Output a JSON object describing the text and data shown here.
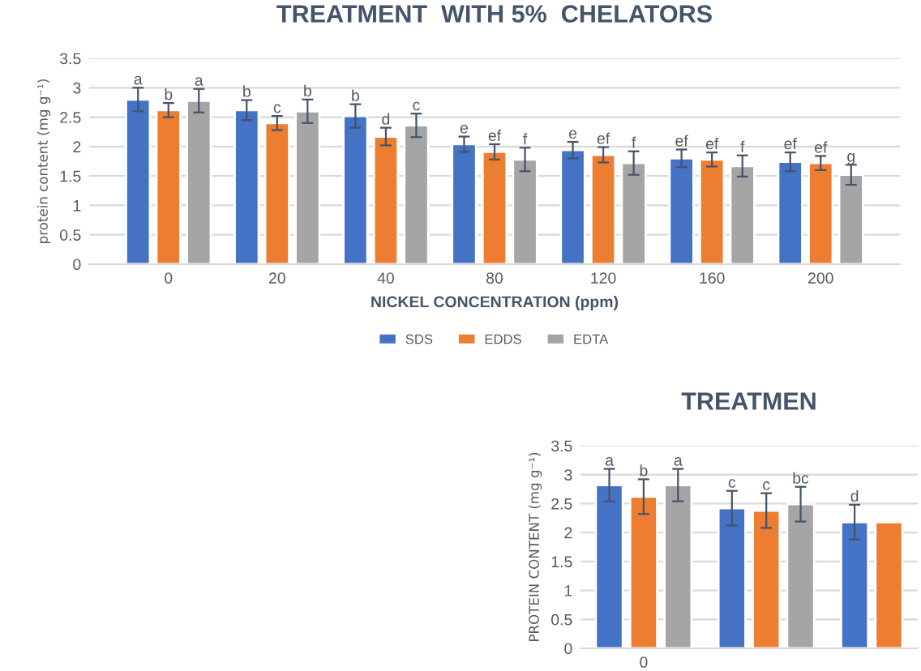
{
  "chart_data": [
    {
      "type": "bar",
      "title": "TREATMENT  WITH 5%  CHELATORS",
      "xlabel": "NICKEL CONCENTRATION (ppm)",
      "ylabel": "protein content (mg g⁻¹)",
      "categories": [
        "0",
        "20",
        "40",
        "80",
        "120",
        "160",
        "200"
      ],
      "ylim": [
        0,
        3.5
      ],
      "yticks": [
        0,
        0.5,
        1,
        1.5,
        2,
        2.5,
        3,
        3.5
      ],
      "grid": "y",
      "legend": "bottom",
      "series": [
        {
          "name": "SDS",
          "color": "#4472c4",
          "values": [
            2.8,
            2.62,
            2.52,
            2.04,
            1.94,
            1.8,
            1.74
          ],
          "errors": [
            0.2,
            0.17,
            0.2,
            0.13,
            0.14,
            0.15,
            0.16
          ],
          "value_labels": [
            "a",
            "b",
            "b",
            "e",
            "e",
            "ef",
            "ef"
          ]
        },
        {
          "name": "EDDS",
          "color": "#ed7d31",
          "values": [
            2.62,
            2.4,
            2.17,
            1.91,
            1.86,
            1.78,
            1.72
          ],
          "errors": [
            0.12,
            0.12,
            0.15,
            0.13,
            0.13,
            0.12,
            0.12
          ],
          "value_labels": [
            "b",
            "c",
            "d",
            "ef",
            "ef",
            "ef",
            "ef"
          ]
        },
        {
          "name": "EDTA",
          "color": "#a5a5a5",
          "values": [
            2.78,
            2.6,
            2.36,
            1.78,
            1.72,
            1.67,
            1.52
          ],
          "errors": [
            0.2,
            0.2,
            0.2,
            0.2,
            0.2,
            0.18,
            0.17
          ],
          "value_labels": [
            "a",
            "b",
            "c",
            "f",
            "f",
            "f",
            "g"
          ]
        }
      ]
    },
    {
      "type": "bar",
      "title": "TREATMEN",
      "ylabel": "PROTEIN CONTENT (mg g⁻¹)",
      "categories": [
        "0",
        null,
        null
      ],
      "ylim": [
        0,
        3.5
      ],
      "yticks": [
        0,
        0.5,
        1,
        1.5,
        2,
        2.5,
        3,
        3.5
      ],
      "grid": "y",
      "legend": false,
      "series": [
        {
          "color": "#4472c4",
          "values": [
            2.82,
            2.42,
            2.18
          ],
          "errors": [
            0.28,
            0.3,
            0.3
          ],
          "value_labels": [
            "a",
            "c",
            "d"
          ]
        },
        {
          "color": "#ed7d31",
          "values": [
            2.62,
            2.38,
            2.18
          ],
          "errors": [
            0.3,
            0.3,
            null
          ],
          "value_labels": [
            "b",
            "c",
            null
          ]
        },
        {
          "color": "#a5a5a5",
          "values": [
            2.82,
            2.49,
            null
          ],
          "errors": [
            0.28,
            0.3,
            null
          ],
          "value_labels": [
            "a",
            "bc",
            null
          ]
        }
      ]
    }
  ]
}
